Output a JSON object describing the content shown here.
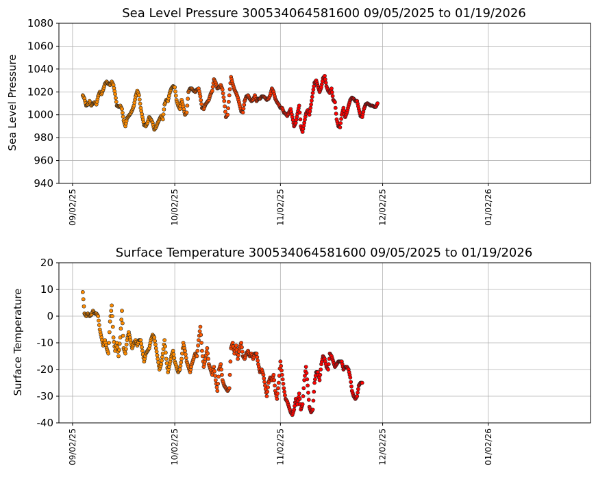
{
  "chart_data": [
    {
      "type": "scatter",
      "title": "Sea Level Pressure 300534064581600  09/05/2025 to 01/19/2026",
      "xlabel": "",
      "ylabel": "Sea Level Pressure",
      "xlim": [
        "2025-08-29",
        "2026-02-01"
      ],
      "ylim": [
        940,
        1080
      ],
      "yticks": [
        940,
        960,
        980,
        1000,
        1020,
        1040,
        1060,
        1080
      ],
      "xticks": [
        {
          "date": "2025-09-02",
          "label": "09/02/25"
        },
        {
          "date": "2025-10-02",
          "label": "10/02/25"
        },
        {
          "date": "2025-11-02",
          "label": "11/02/25"
        },
        {
          "date": "2025-12-02",
          "label": "12/02/25"
        },
        {
          "date": "2026-01-02",
          "label": "01/02/26"
        }
      ],
      "grid": true,
      "start": "2025-09-05",
      "values_per_day": 2,
      "color_stops": [
        {
          "day": 0,
          "color": "#ff8c00"
        },
        {
          "day": 27,
          "color": "#ff8c00"
        },
        {
          "day": 34,
          "color": "#ff5a00"
        },
        {
          "day": 56,
          "color": "#ff2a00"
        },
        {
          "day": 62,
          "color": "#ff0000"
        },
        {
          "day": 87,
          "color": "#ff0000"
        },
        {
          "day": 89,
          "color": "#8b4513"
        },
        {
          "day": 119,
          "color": "#8b4513"
        },
        {
          "day": 120,
          "color": "#000000"
        }
      ],
      "values": [
        1017,
        1014,
        1008,
        1009,
        1012,
        1008,
        1010,
        1011,
        1009,
        1016,
        1020,
        1018,
        1022,
        1027,
        1029,
        1027,
        1026,
        1029,
        1026,
        1018,
        1008,
        1007,
        1008,
        1005,
        995,
        990,
        997,
        999,
        1001,
        1004,
        1008,
        1016,
        1021,
        1017,
        1006,
        998,
        991,
        990,
        993,
        998,
        996,
        993,
        987,
        989,
        993,
        996,
        999,
        996,
        1009,
        1013,
        1012,
        1019,
        1023,
        1025,
        1024,
        1013,
        1008,
        1005,
        1013,
        1007,
        1000,
        1002,
        1020,
        1023,
        1023,
        1021,
        1020,
        1022,
        1023,
        1016,
        1006,
        1005,
        1009,
        1011,
        1013,
        1018,
        1021,
        1031,
        1028,
        1023,
        1024,
        1026,
        1022,
        1012,
        998,
        1000,
        1017,
        1033,
        1027,
        1022,
        1019,
        1015,
        1009,
        1003,
        1002,
        1012,
        1016,
        1017,
        1014,
        1012,
        1013,
        1017,
        1012,
        1014,
        1014,
        1016,
        1016,
        1015,
        1013,
        1014,
        1017,
        1023,
        1020,
        1014,
        1011,
        1009,
        1006,
        1006,
        1002,
        1001,
        999,
        1002,
        1005,
        998,
        990,
        993,
        1001,
        1008,
        990,
        985,
        993,
        1001,
        1004,
        1000,
        1009,
        1019,
        1028,
        1030,
        1025,
        1020,
        1024,
        1032,
        1034,
        1025,
        1021,
        1019,
        1023,
        1013,
        1011,
        996,
        990,
        989,
        1000,
        1006,
        998,
        1002,
        1008,
        1013,
        1015,
        1014,
        1012,
        1012,
        1005,
        999,
        998,
        1005,
        1009,
        1010,
        1009,
        1008,
        1008,
        1007,
        1007,
        1010
      ]
    },
    {
      "type": "scatter",
      "title": "Surface Temperature 300534064581600  09/05/2025 to 01/19/2026",
      "xlabel": "",
      "ylabel": "Surface Temperature",
      "xlim": [
        "2025-08-29",
        "2026-02-01"
      ],
      "ylim": [
        -40,
        20
      ],
      "yticks": [
        -40,
        -30,
        -20,
        -10,
        0,
        10,
        20
      ],
      "xticks": [
        {
          "date": "2025-09-02",
          "label": "09/02/25"
        },
        {
          "date": "2025-10-02",
          "label": "10/02/25"
        },
        {
          "date": "2025-11-02",
          "label": "11/02/25"
        },
        {
          "date": "2025-12-02",
          "label": "12/02/25"
        },
        {
          "date": "2026-01-02",
          "label": "01/02/26"
        }
      ],
      "grid": true,
      "start": "2025-09-05",
      "values_per_day": 2,
      "color_stops": [
        {
          "day": 0,
          "color": "#ff8c00"
        },
        {
          "day": 27,
          "color": "#ff8c00"
        },
        {
          "day": 34,
          "color": "#ff5a00"
        },
        {
          "day": 56,
          "color": "#ff2a00"
        },
        {
          "day": 62,
          "color": "#ff0000"
        },
        {
          "day": 87,
          "color": "#ff0000"
        },
        {
          "day": 89,
          "color": "#8b4513"
        },
        {
          "day": 119,
          "color": "#8b4513"
        },
        {
          "day": 120,
          "color": "#000000"
        }
      ],
      "values": [
        9,
        1,
        0,
        1,
        0,
        0.5,
        2,
        1,
        1,
        0,
        -5,
        -8,
        -11,
        -9,
        -12,
        -14,
        -2,
        4,
        -8,
        -13,
        -10,
        -15,
        -8,
        2,
        -12,
        -14,
        -9,
        -6,
        -9,
        -12,
        -10,
        -9,
        -11,
        -9,
        -9,
        -13,
        -17,
        -14,
        -13,
        -12,
        -9,
        -7,
        -8,
        -12,
        -16,
        -20,
        -18,
        -14,
        -9,
        -16,
        -21,
        -18,
        -15,
        -13,
        -17,
        -19,
        -21,
        -20,
        -16,
        -10,
        -13,
        -17,
        -19,
        -21,
        -18,
        -16,
        -14,
        -15,
        -9,
        -4,
        -13,
        -19,
        -16,
        -12,
        -18,
        -20,
        -22,
        -19,
        -24,
        -28,
        -20,
        -18,
        -24,
        -26,
        -27,
        -28,
        -27,
        -12,
        -10,
        -14,
        -11,
        -16,
        -12,
        -10,
        -15,
        -16,
        -14,
        -13,
        -15,
        -14,
        -16,
        -14,
        -14,
        -18,
        -21,
        -20,
        -22,
        -26,
        -30,
        -25,
        -23,
        -24,
        -22,
        -28,
        -31,
        -25,
        -17,
        -22,
        -27,
        -31,
        -32,
        -34,
        -36,
        -37,
        -35,
        -31,
        -33,
        -29,
        -35,
        -33,
        -24,
        -19,
        -26,
        -34,
        -36,
        -35,
        -25,
        -21,
        -21,
        -24,
        -18,
        -15,
        -16,
        -19,
        -20,
        -14,
        -15,
        -17,
        -19,
        -18,
        -17,
        -17,
        -17,
        -20,
        -19,
        -19,
        -20,
        -23,
        -28,
        -30,
        -31,
        -30,
        -26,
        -25,
        -25
      ]
    }
  ]
}
